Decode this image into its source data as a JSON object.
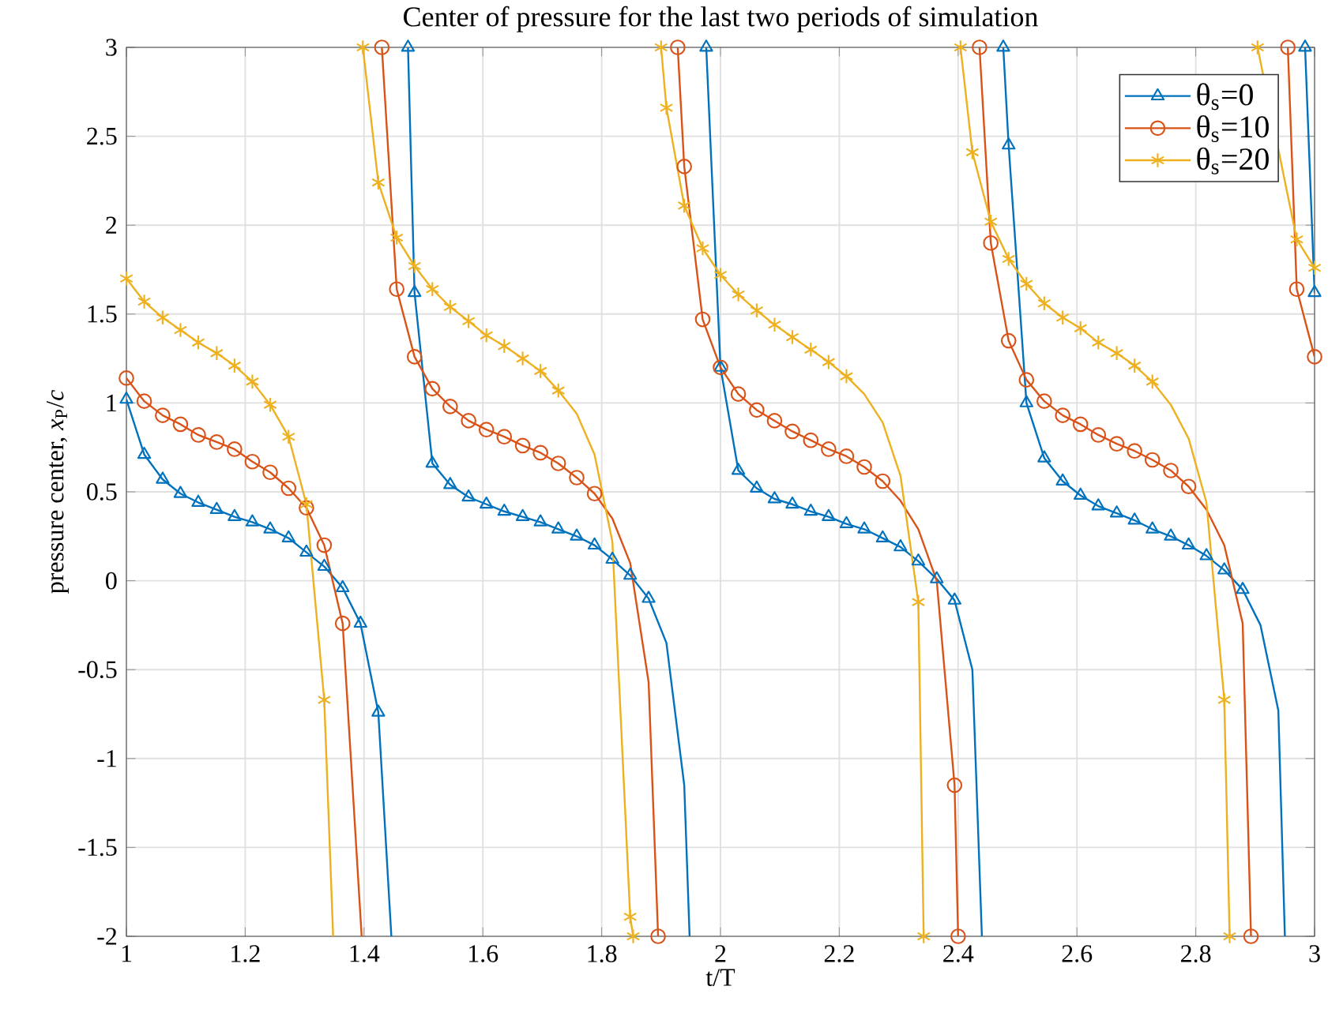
{
  "chart_data": {
    "type": "line",
    "title": "Center of pressure for the last two periods of simulation",
    "xlabel": "t/T",
    "ylabel": "pressure center, *x*$_{P}$/*c*",
    "xlim": [
      1,
      3
    ],
    "ylim": [
      -2,
      3
    ],
    "xticks": [
      1,
      1.2,
      1.4,
      1.6,
      1.8,
      2,
      2.2,
      2.4,
      2.6,
      2.8,
      3
    ],
    "yticks": [
      -2,
      -1.5,
      -1,
      -0.5,
      0,
      0.5,
      1,
      1.5,
      2,
      2.5,
      3
    ],
    "grid": true,
    "legend": "top right",
    "line_style": "solid",
    "series": [
      {
        "name": "θ$_{s}$=0",
        "color": "#0072bd",
        "marker": "triangle",
        "x": [
          1.0,
          1.03,
          1.061,
          1.091,
          1.121,
          1.152,
          1.182,
          1.212,
          1.242,
          1.273,
          1.303,
          1.333,
          1.364,
          1.394,
          1.424,
          1.446,
          1.46,
          1.474,
          1.485,
          1.515,
          1.545,
          1.576,
          1.606,
          1.636,
          1.667,
          1.697,
          1.727,
          1.758,
          1.788,
          1.818,
          1.848,
          1.879,
          1.909,
          1.939,
          1.948,
          1.962,
          1.976,
          2.0,
          2.03,
          2.061,
          2.091,
          2.121,
          2.152,
          2.182,
          2.212,
          2.242,
          2.273,
          2.303,
          2.333,
          2.364,
          2.394,
          2.424,
          2.44,
          2.455,
          2.476,
          2.485,
          2.515,
          2.545,
          2.576,
          2.606,
          2.636,
          2.667,
          2.697,
          2.727,
          2.758,
          2.788,
          2.818,
          2.848,
          2.879,
          2.909,
          2.939,
          2.95,
          2.965,
          2.984,
          3.0
        ],
        "values": [
          1.02,
          0.71,
          0.57,
          0.49,
          0.44,
          0.4,
          0.36,
          0.33,
          0.29,
          0.24,
          0.16,
          0.08,
          -0.04,
          -0.24,
          -0.74,
          -2,
          null,
          3,
          1.62,
          0.66,
          0.54,
          0.47,
          0.43,
          0.39,
          0.36,
          0.33,
          0.29,
          0.25,
          0.2,
          0.12,
          0.03,
          -0.1,
          -0.35,
          -1.15,
          -2,
          null,
          3,
          1.2,
          0.62,
          0.52,
          0.46,
          0.43,
          0.39,
          0.36,
          0.32,
          0.29,
          0.24,
          0.19,
          0.11,
          0.01,
          -0.11,
          -0.5,
          -2,
          null,
          3,
          2.45,
          1.0,
          0.69,
          0.56,
          0.48,
          0.42,
          0.38,
          0.34,
          0.29,
          0.25,
          0.2,
          0.14,
          0.06,
          -0.05,
          -0.25,
          -0.73,
          -2,
          null,
          3,
          1.62
        ]
      },
      {
        "name": "θ$_{s}$=10",
        "color": "#d95319",
        "marker": "circle",
        "x": [
          1.0,
          1.03,
          1.061,
          1.091,
          1.121,
          1.152,
          1.182,
          1.212,
          1.242,
          1.273,
          1.303,
          1.333,
          1.364,
          1.396,
          1.41,
          1.43,
          1.455,
          1.485,
          1.515,
          1.545,
          1.576,
          1.606,
          1.636,
          1.667,
          1.697,
          1.727,
          1.758,
          1.788,
          1.818,
          1.848,
          1.879,
          1.895,
          1.91,
          1.928,
          1.939,
          1.97,
          2.0,
          2.03,
          2.061,
          2.091,
          2.121,
          2.152,
          2.182,
          2.212,
          2.242,
          2.273,
          2.303,
          2.333,
          2.364,
          2.394,
          2.4,
          2.415,
          2.436,
          2.455,
          2.485,
          2.515,
          2.545,
          2.576,
          2.606,
          2.636,
          2.667,
          2.697,
          2.727,
          2.758,
          2.788,
          2.818,
          2.848,
          2.879,
          2.893,
          2.92,
          2.955,
          2.97,
          3.0
        ],
        "values": [
          1.14,
          1.01,
          0.93,
          0.88,
          0.82,
          0.78,
          0.74,
          0.67,
          0.61,
          0.52,
          0.41,
          0.2,
          -0.24,
          -2,
          null,
          3,
          1.64,
          1.26,
          1.08,
          0.98,
          0.9,
          0.85,
          0.81,
          0.76,
          0.72,
          0.66,
          0.58,
          0.49,
          0.35,
          0.1,
          -0.57,
          -2,
          null,
          3,
          2.33,
          1.47,
          1.2,
          1.05,
          0.96,
          0.9,
          0.84,
          0.79,
          0.74,
          0.7,
          0.64,
          0.56,
          0.45,
          0.29,
          0.0,
          -1.15,
          -2,
          null,
          3,
          1.9,
          1.35,
          1.13,
          1.01,
          0.93,
          0.88,
          0.82,
          0.77,
          0.73,
          0.68,
          0.62,
          0.53,
          0.4,
          0.2,
          -0.24,
          -2,
          null,
          3,
          1.64,
          1.26
        ]
      },
      {
        "name": "θ$_{s}$=20",
        "color": "#edb120",
        "marker": "cross",
        "x": [
          1.0,
          1.03,
          1.061,
          1.091,
          1.121,
          1.152,
          1.182,
          1.212,
          1.242,
          1.273,
          1.303,
          1.333,
          1.348,
          1.37,
          1.398,
          1.424,
          1.455,
          1.485,
          1.515,
          1.545,
          1.576,
          1.606,
          1.636,
          1.667,
          1.697,
          1.727,
          1.758,
          1.788,
          1.818,
          1.848,
          1.853,
          1.875,
          1.9,
          1.909,
          1.939,
          1.97,
          2.0,
          2.03,
          2.061,
          2.091,
          2.121,
          2.152,
          2.182,
          2.212,
          2.242,
          2.273,
          2.303,
          2.333,
          2.342,
          2.37,
          2.404,
          2.424,
          2.455,
          2.485,
          2.515,
          2.545,
          2.576,
          2.606,
          2.636,
          2.667,
          2.697,
          2.727,
          2.758,
          2.788,
          2.818,
          2.848,
          2.857,
          2.88,
          2.904,
          2.97,
          3.0
        ],
        "values": [
          1.7,
          1.57,
          1.48,
          1.41,
          1.34,
          1.28,
          1.21,
          1.12,
          0.99,
          0.81,
          0.43,
          -0.67,
          -2,
          null,
          3,
          2.24,
          1.93,
          1.77,
          1.64,
          1.54,
          1.46,
          1.38,
          1.32,
          1.25,
          1.18,
          1.07,
          0.94,
          0.71,
          0.22,
          -1.89,
          -2,
          null,
          3,
          2.66,
          2.11,
          1.87,
          1.72,
          1.61,
          1.52,
          1.44,
          1.37,
          1.3,
          1.23,
          1.15,
          1.05,
          0.89,
          0.59,
          -0.12,
          -2,
          null,
          3,
          2.41,
          2.02,
          1.81,
          1.67,
          1.56,
          1.48,
          1.42,
          1.34,
          1.28,
          1.21,
          1.12,
          0.99,
          0.8,
          0.44,
          -0.67,
          -2,
          null,
          3,
          1.92,
          1.76
        ]
      }
    ]
  }
}
